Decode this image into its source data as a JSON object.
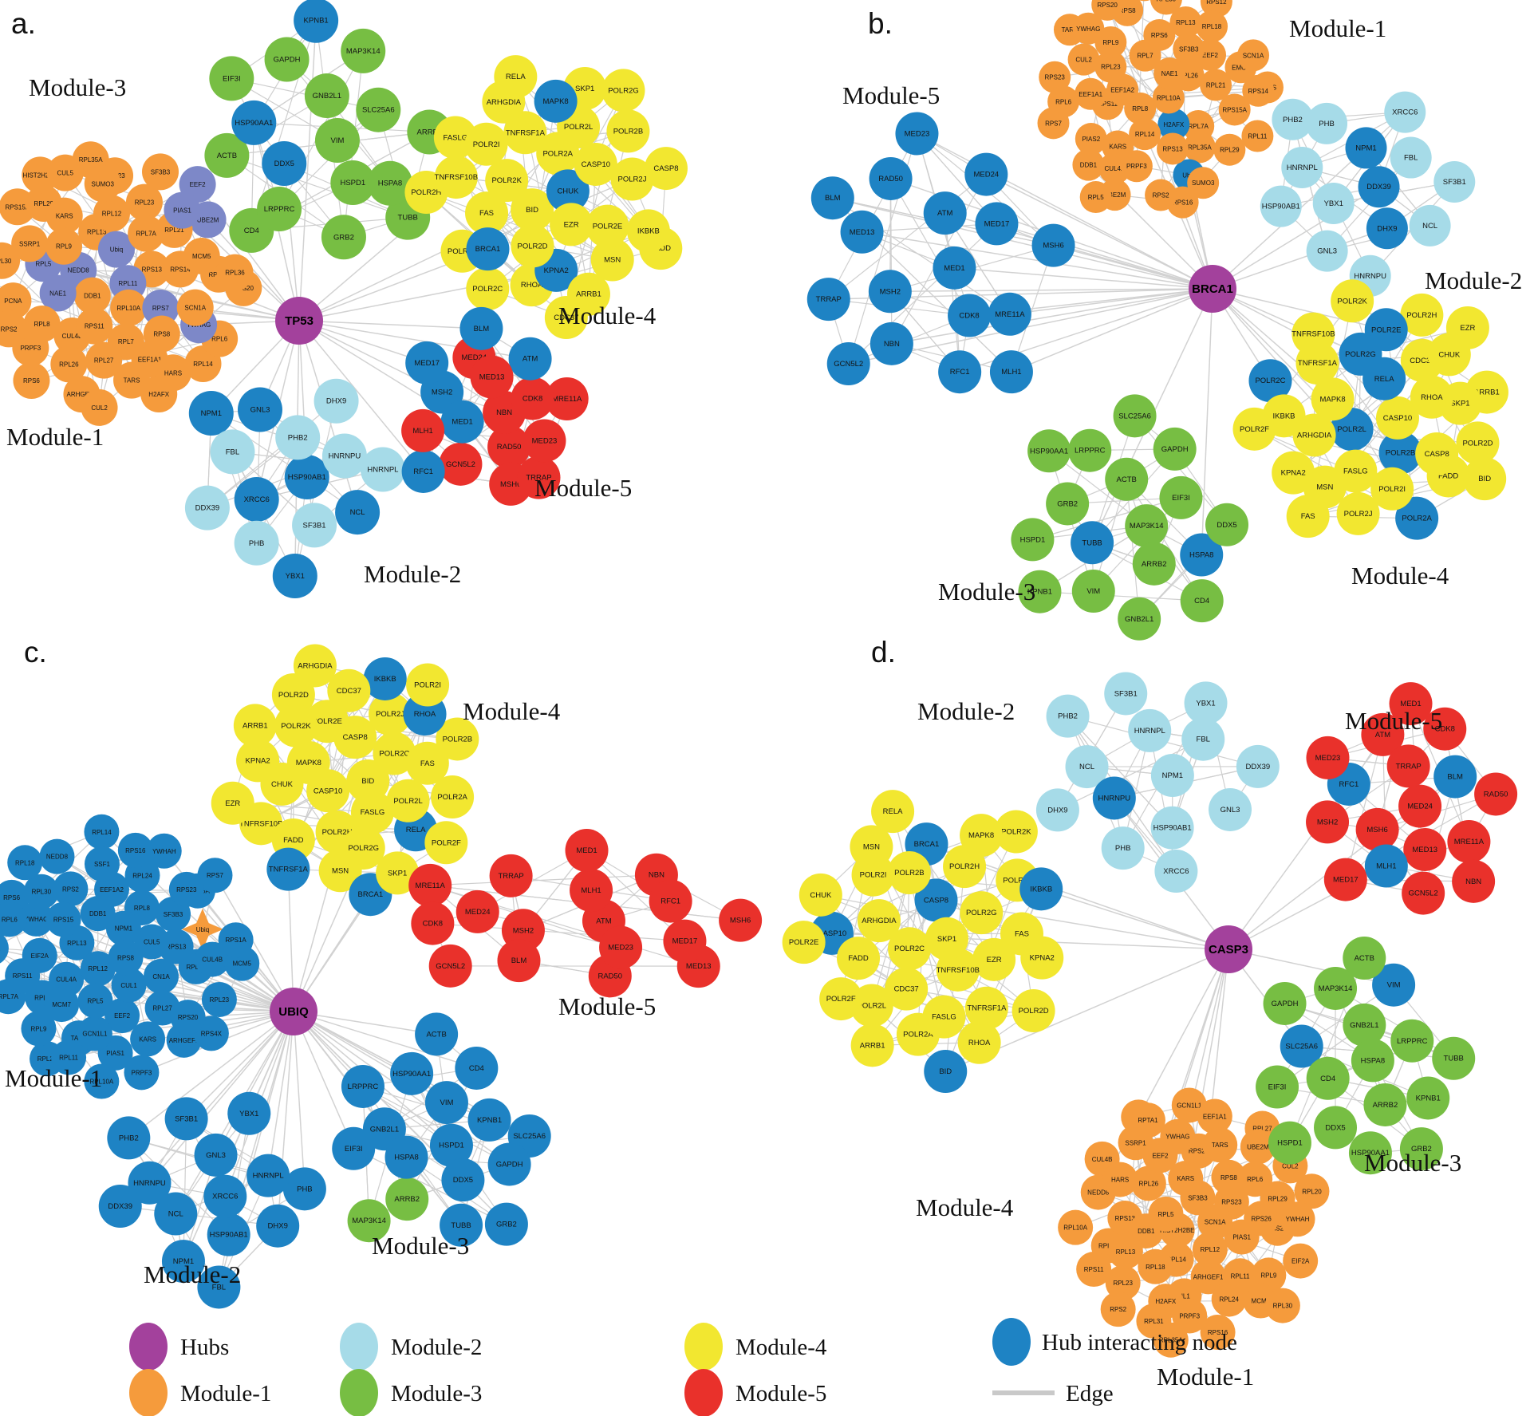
{
  "palette": {
    "hub": "#A3419C",
    "module1": "#F59B3C",
    "module2": "#A6DBE8",
    "module3": "#77BE43",
    "module4": "#F2E730",
    "module5": "#E9312B",
    "hubnode": "#1E83C4",
    "slate": "#7D88C8",
    "edge": "#CFCFCF"
  },
  "legend": {
    "items": [
      {
        "label": "Hubs",
        "color": "hub",
        "type": "dot"
      },
      {
        "label": "Module-1",
        "color": "module1",
        "type": "dot"
      },
      {
        "label": "Module-2",
        "color": "module2",
        "type": "dot"
      },
      {
        "label": "Module-3",
        "color": "module3",
        "type": "dot"
      },
      {
        "label": "Module-4",
        "color": "module4",
        "type": "dot"
      },
      {
        "label": "Module-5",
        "color": "module5",
        "type": "dot"
      },
      {
        "label": "Hub interacting node",
        "color": "hubnode",
        "type": "dot"
      },
      {
        "label": "Edge",
        "color": "edge",
        "type": "line"
      }
    ]
  },
  "panels": [
    {
      "id": "a",
      "letter": "a.",
      "hub": "TP53",
      "modules": [
        {
          "name": "Module-1",
          "base": "module1",
          "nodes": [
            "CUL4B",
            "RPS13",
            "TARS",
            "EEF1A1",
            "UBE2M",
            "NEDD8",
            "RPS16",
            "RPS20",
            "RPL11",
            "RPL5",
            "EEF2",
            "RPL10A",
            "RPS15A",
            "RPL14",
            "EEF1A2",
            "RPL13",
            "RPL36",
            "RPS6",
            "RPL6",
            "HARS",
            "H2AFX",
            "RPS11",
            "RPL29",
            "RPL21",
            "SF3B3",
            "RPL23",
            "ARHGEF1",
            "KARS",
            "SSRP1",
            "RPL35A",
            "RPS7",
            "PCNA",
            "RPL12",
            "PRPF3",
            "RPL26",
            "RPS23",
            "DDB1",
            "NAE1",
            "SUMO3",
            "RPL8",
            "YWHAG",
            "RPS2",
            "SCN1A",
            "RPS8",
            "Ubiq",
            "CUL2",
            "RPL9",
            "RPL7",
            "RPS14",
            "HIST2H2BE",
            "MCM5",
            "PIAS1",
            "CUL5",
            "RPL30",
            "RPL27",
            "RPL7A"
          ],
          "overrides": {
            "RPL5": "slate",
            "RPL11": "slate",
            "EEF2": "slate",
            "UBE2M": "slate",
            "NEDD8": "slate",
            "PIAS1": "slate",
            "RPS7": "slate",
            "NAE1": "slate",
            "Ubiq": "slate",
            "YWHAG": "slate"
          }
        },
        {
          "name": "Module-2",
          "base": "module2",
          "nodes": [
            "HNRNPL",
            "XRCC6",
            "NPM1",
            "SF3B1",
            "HSP90AB1",
            "PHB",
            "PHB2",
            "HNRNPU",
            "GNL3",
            "NCL",
            "DDX39",
            "DHX9",
            "YBX1",
            "FBL"
          ],
          "overrides": {
            "XRCC6": "hubnode",
            "NPM1": "hubnode",
            "HSP90AB1": "hubnode",
            "GNL3": "hubnode",
            "NCL": "hubnode",
            "YBX1": "hubnode"
          }
        },
        {
          "name": "Module-3",
          "base": "module3",
          "nodes": [
            "CD4",
            "HSPD1",
            "GNB2L1",
            "EIF3I",
            "SLC25A6",
            "TUBB",
            "DDX5",
            "VIM",
            "LRPPRC",
            "ACTB",
            "GRB2",
            "KPNB1",
            "GAPDH",
            "HSPA8",
            "MAP3K14",
            "HSP90AA1",
            "ARRB2"
          ],
          "overrides": {
            "DDX5": "hubnode",
            "KPNB1": "hubnode",
            "HSP90AA1": "hubnode"
          }
        },
        {
          "name": "Module-4",
          "base": "module4",
          "nodes": [
            "RHOA",
            "FASLG",
            "MSN",
            "POLR2H",
            "POLR2L",
            "BID",
            "POLR2F",
            "POLR2A",
            "FAS",
            "KPNA2",
            "CDC37",
            "TNFRSF10B",
            "TNFRSF1A",
            "ARHGDIA",
            "FADD",
            "CASP8",
            "CHUK",
            "IKBKB",
            "POLR2K",
            "SKP1",
            "POLR2E",
            "POLR2C",
            "POLR2J",
            "POLR2G",
            "EZR",
            "RELA",
            "POLR2D",
            "POLR2I",
            "POLR2B",
            "ARRB1",
            "MAPK8",
            "CASP10",
            "BRCA1"
          ],
          "overrides": {
            "KPNA2": "hubnode",
            "CHUK": "hubnode",
            "MAPK8": "hubnode",
            "BRCA1": "hubnode"
          }
        },
        {
          "name": "Module-5",
          "base": "module5",
          "nodes": [
            "RAD50",
            "MRE11A",
            "MSH6",
            "MSH2",
            "MED17",
            "GCN5L2",
            "MED1",
            "TRRAP",
            "MED24",
            "NBN",
            "RFC1",
            "CDK8",
            "BLM",
            "ATM",
            "MLH1",
            "MED13",
            "MED23"
          ],
          "overrides": {
            "MSH2": "hubnode",
            "MED17": "hubnode",
            "MED1": "hubnode",
            "RFC1": "hubnode",
            "BLM": "hubnode",
            "ATM": "hubnode"
          }
        }
      ]
    },
    {
      "id": "b",
      "letter": "b.",
      "hub": "BRCA1",
      "modules": [
        {
          "name": "Module-1",
          "base": "module1",
          "nodes": [
            "RPL23",
            "RPS12",
            "RPL6",
            "RPL18",
            "RPL35A",
            "RPL21",
            "HARS",
            "EEF2",
            "RPS23",
            "CUL4A",
            "RPS11",
            "RPL7A",
            "RPS14",
            "H2AFX",
            "RPS15A",
            "RPL30",
            "RPS6",
            "EMG1",
            "RPL8",
            "PIAS2",
            "UBE2M",
            "EEF1A1",
            "RPS8",
            "ERCC4",
            "PRPF3",
            "Ubiq",
            "SUMO3",
            "TARS",
            "KARS",
            "RPL10A",
            "RPS13",
            "RPS20",
            "RPL11",
            "RPL5",
            "RPL14",
            "EEF1A2",
            "RPL13",
            "RPS16",
            "RPL29",
            "SF3B3",
            "RPL26",
            "DDB1",
            "NAE1",
            "RPS2",
            "SCN1A",
            "CUL2",
            "RPL9",
            "RPL7",
            "RPS7",
            "YWHAG"
          ],
          "overrides": {
            "H2AFX": "hubnode",
            "Ubiq": "hubnode"
          }
        },
        {
          "name": "Module-2",
          "base": "module2",
          "nodes": [
            "GNL3",
            "PHB2",
            "HSP90AB1",
            "HNRNPU",
            "SF3B1",
            "NPM1",
            "XRCC6",
            "YBX1",
            "HNRNPL",
            "DHX9",
            "PHB",
            "FBL",
            "DDX39",
            "NCL"
          ],
          "overrides": {
            "NPM1": "hubnode",
            "DHX9": "hubnode",
            "DDX39": "hubnode"
          }
        },
        {
          "name": "Module-3",
          "base": "module3",
          "nodes": [
            "TUBB",
            "CD4",
            "ACTB",
            "HSPA8",
            "KPNB1",
            "HSP90AA1",
            "VIM",
            "GNB2L1",
            "DDX5",
            "GAPDH",
            "GRB2",
            "LRPPRC",
            "MAP3K14",
            "HSPD1",
            "EIF3I",
            "ARRB2",
            "SLC25A6"
          ],
          "overrides": {
            "TUBB": "hubnode",
            "HSPA8": "hubnode"
          }
        },
        {
          "name": "Module-4",
          "base": "module4",
          "nodes": [
            "POLR2A",
            "POLR2C",
            "TNFRSF10B",
            "POLR2B",
            "POLR2K",
            "ARRB1",
            "SKP1",
            "RHOA",
            "FADD",
            "IKBKB",
            "POLR2H",
            "POLR2L",
            "POLR2F",
            "POLR2D",
            "CDC37",
            "KPNA2",
            "ARHGDIA",
            "EZR",
            "MSN",
            "BID",
            "FAS",
            "CASP8",
            "FASLG",
            "MAPK8",
            "CHUK",
            "TNFRSF1A",
            "POLR2E",
            "POLR2I",
            "CASP10",
            "RELA",
            "POLR2G",
            "POLR2J"
          ],
          "overrides": {
            "POLR2A": "hubnode",
            "POLR2B": "hubnode",
            "POLR2C": "hubnode",
            "POLR2E": "hubnode",
            "POLR2G": "hubnode",
            "POLR2L": "hubnode",
            "RELA": "hubnode"
          }
        },
        {
          "name": "Module-5",
          "base": "hubnode",
          "nodes": [
            "RFC1",
            "ATM",
            "MRE11A",
            "BLM",
            "MLH1",
            "NBN",
            "MSH6",
            "RAD50",
            "MSH2",
            "MED24",
            "TRRAP",
            "CDK8",
            "GCN5L2",
            "MED23",
            "MED17",
            "MED13",
            "MED1"
          ],
          "overrides": {}
        }
      ]
    },
    {
      "id": "c",
      "letter": "c.",
      "hub": "UBIQ",
      "modules": [
        {
          "name": "Module-1",
          "base": "hubnode",
          "nodes": [
            "RPL7",
            "EIF2A",
            "RPL35A",
            "RPS6",
            "RPL8",
            "PIAS1",
            "YWHAG",
            "RPL31",
            "RPS7",
            "SF3B3",
            "RPL30",
            "RPL26",
            "CN1A",
            "EEF2",
            "EEF1A2",
            "RPL23",
            "TARS",
            "ARHGEF1",
            "RPS13",
            "CUL5",
            "RPL14",
            "KARS",
            "RPL13",
            "RPL7A",
            "Ubiq",
            "RPL24",
            "MGN1",
            "GCN1L1",
            "CUL4A",
            "RPS2",
            "RPS11",
            "RPL10A",
            "NPM1",
            "RPL12",
            "DDB1",
            "CUL4B",
            "NEDD8",
            "MCM5",
            "RPS4X",
            "RPL6",
            "RPL27",
            "RPL18",
            "PRPF3",
            "RPL9",
            "YWHAH",
            "SSF1",
            "CUL1",
            "RPS1A",
            "RPS20",
            "RPS16",
            "RPS15",
            "RPL5",
            "RPL11",
            "RPS8",
            "RPS23",
            "MCM7"
          ],
          "overrides": {
            "Ubiq": "star"
          }
        },
        {
          "name": "Module-2",
          "base": "hubnode",
          "nodes": [
            "PHB2",
            "HSP90AB1",
            "PHB",
            "SF3B1",
            "HNRNPL",
            "NCL",
            "HNRNPU",
            "XRCC6",
            "DHX9",
            "FBL",
            "YBX1",
            "GNL3",
            "NPM1",
            "DDX39"
          ],
          "overrides": {}
        },
        {
          "name": "Module-3",
          "base": "hubnode",
          "nodes": [
            "GNB2L1",
            "VIM",
            "HSPD1",
            "ACTB",
            "SLC25A6",
            "KPNB1",
            "EIF3I",
            "GAPDH",
            "LRPPRC",
            "ARRB2",
            "CD4",
            "DDX5",
            "HSP90AA1",
            "MAP3K14",
            "GRB2",
            "HSPA8",
            "TUBB"
          ],
          "overrides": {
            "ARRB2": "module3",
            "MAP3K14": "module3"
          }
        },
        {
          "name": "Module-4",
          "base": "module4",
          "nodes": [
            "CASP8",
            "CASP10",
            "TNFRSF10B",
            "MSN",
            "FADD",
            "POLR2D",
            "POLR2J",
            "CHUK",
            "ARRB1",
            "BRCA1",
            "IKBKB",
            "POLR2B",
            "POLR2E",
            "BID",
            "CDC37",
            "POLR2H",
            "SKP1",
            "TNFRSF1A",
            "POLR2K",
            "RELA",
            "EZR",
            "FASLG",
            "RHOA",
            "POLR2C",
            "MAPK8",
            "POLR2I",
            "POLR2L",
            "POLR2A",
            "KPNA2",
            "POLR2G",
            "POLR2F",
            "FAS",
            "ARHGDIA"
          ],
          "overrides": {
            "BRCA1": "hubnode",
            "IKBKB": "hubnode",
            "TNFRSF1A": "hubnode",
            "RELA": "hubnode",
            "RHOA": "hubnode"
          }
        },
        {
          "name": "Module-5",
          "base": "module5",
          "nodes": [
            "MSH6",
            "MRE11A",
            "NBN",
            "MSH2",
            "RFC1",
            "ATM",
            "MLH1",
            "BLM",
            "RAD50",
            "GCN5L2",
            "TRRAP",
            "MED13",
            "MED23",
            "MED24",
            "MED1",
            "MED17",
            "CDK8"
          ],
          "overrides": {}
        }
      ]
    },
    {
      "id": "d",
      "letter": "d.",
      "hub": "CASP3",
      "modules": [
        {
          "name": "Module-1",
          "base": "module1",
          "nodes": [
            "ARHGEF1",
            "RPS20",
            "GCN1L1",
            "Ubiq",
            "RPL9",
            "PIAS1",
            "RPS16",
            "CUL4B",
            "AS2",
            "UL1",
            "SF3B3",
            "NEDD8",
            "EIF2A",
            "RPL23",
            "RPL35A",
            "RPL26",
            "RPL20",
            "RPL24",
            "HARS",
            "RPS2",
            "RPL14",
            "RPL7A",
            "EEF2",
            "EEF1A2",
            "RPL10A",
            "PRPF3",
            "RPL27",
            "YWHAH",
            "RPL29",
            "EEF1A1",
            "RPS23",
            "MCM5",
            "H2AFX",
            "RPL31",
            "RPL30",
            "RPL11",
            "RPS13",
            "SCN1A",
            "SSRP1",
            "DDB1",
            "UBE2M",
            "RPS26",
            "RPL12",
            "HIST2H2BE",
            "RPTA1",
            "YWHAG",
            "RPL18",
            "RPL13",
            "RPL5",
            "KARS",
            "TARS",
            "RPS8",
            "RPL6",
            "RPS11",
            "CUL2"
          ],
          "overrides": {}
        },
        {
          "name": "Module-2",
          "base": "module2",
          "nodes": [
            "DDX39",
            "NPM1",
            "NCL",
            "HNRNPL",
            "XRCC6",
            "PHB2",
            "HSP90AB1",
            "FBL",
            "DHX9",
            "SF3B1",
            "GNL3",
            "YBX1",
            "PHB",
            "HNRNPU"
          ],
          "overrides": {
            "HNRNPU": "hubnode"
          }
        },
        {
          "name": "Module-3",
          "base": "module3",
          "nodes": [
            "VIM",
            "SLC25A6",
            "GNB2L1",
            "EIF3I",
            "ACTB",
            "HSPD1",
            "CD4",
            "KPNB1",
            "LRPPRC",
            "ARRB2",
            "MAP3K14",
            "DDX5",
            "HSP90AA1",
            "GRB2",
            "HSPA8",
            "GAPDH",
            "TUBB"
          ],
          "overrides": {
            "VIM": "hubnode",
            "SLC25A6": "hubnode"
          }
        },
        {
          "name": "Module-4",
          "base": "module4",
          "nodes": [
            "POLR2J",
            "ARRB1",
            "TNFRSF1A",
            "POLR2I",
            "POLR2G",
            "POLR2K",
            "POLR2A",
            "BRCA1",
            "CASP10",
            "FAS",
            "IKBKB",
            "POLR2C",
            "CASP8",
            "POLR2B",
            "POLR2L",
            "BID",
            "POLR2H",
            "CDC37",
            "POLR2E",
            "POLR2D",
            "MAPK8",
            "EZR",
            "CHUK",
            "MSN",
            "POLR2F",
            "TNFRSF10B",
            "KPNA2",
            "RELA",
            "FASLG",
            "ARHGDIA",
            "FADD",
            "RHOA",
            "SKP1"
          ],
          "overrides": {
            "CASP8": "hubnode",
            "CASP10": "hubnode",
            "BID": "hubnode",
            "BRCA1": "hubnode",
            "IKBKB": "hubnode"
          }
        },
        {
          "name": "Module-5",
          "base": "module5",
          "nodes": [
            "ATM",
            "MED17",
            "RAD50",
            "MRE11A",
            "MED1",
            "MSH6",
            "MED13",
            "RFC1",
            "MLH1",
            "NBN",
            "CDK8",
            "BLM",
            "GCN5L2",
            "MED24",
            "MSH2",
            "TRRAP",
            "MED23"
          ],
          "overrides": {
            "RFC1": "hubnode",
            "MLH1": "hubnode",
            "BLM": "hubnode"
          }
        }
      ]
    }
  ]
}
